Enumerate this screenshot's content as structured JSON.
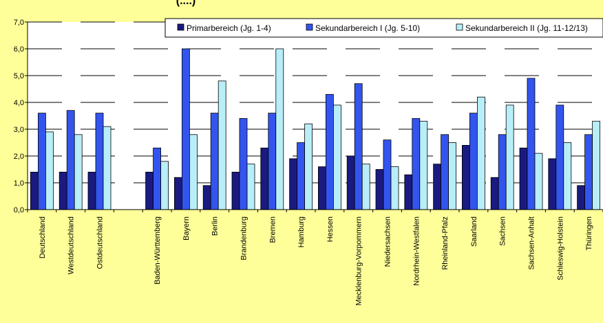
{
  "chart_data": {
    "type": "bar",
    "title_fragment": "(....)",
    "ylim": [
      0,
      7
    ],
    "yticks": [
      "0,0",
      "1,0",
      "2,0",
      "3,0",
      "4,0",
      "5,0",
      "6,0",
      "7,0"
    ],
    "grid": true,
    "legend_position": "top-right",
    "categories": [
      "Deutschland",
      "Westdeutschland",
      "Ostdeutschland",
      "",
      "Baden-Württemberg",
      "Bayern",
      "Berlin",
      "Brandenburg",
      "Bremen",
      "Hamburg",
      "Hessen",
      "Mecklenburg-Vorpommern",
      "Niedersachsen",
      "Nordrhein-Westfalen",
      "Rheinland-Pfalz",
      "Saarland",
      "Sachsen",
      "Sachsen-Anhalt",
      "Schleswig-Holstein",
      "Thüringen"
    ],
    "series": [
      {
        "name": "Primarbereich (Jg. 1-4)",
        "color": "#1a1a80",
        "values": [
          1.4,
          1.4,
          1.4,
          null,
          1.4,
          1.2,
          0.9,
          1.4,
          2.3,
          1.9,
          1.6,
          2.0,
          1.5,
          1.3,
          1.7,
          2.4,
          1.2,
          2.3,
          1.9,
          0.9
        ]
      },
      {
        "name": "Sekundarbereich I (Jg. 5-10)",
        "color": "#3355ee",
        "values": [
          3.6,
          3.7,
          3.6,
          null,
          2.3,
          6.0,
          3.6,
          3.4,
          3.6,
          2.5,
          4.3,
          4.7,
          2.6,
          3.4,
          2.8,
          3.6,
          2.8,
          4.9,
          3.9,
          2.8
        ]
      },
      {
        "name": "Sekundarbereich II (Jg. 11-12/13)",
        "color": "#b8eef8",
        "values": [
          2.9,
          2.8,
          3.1,
          null,
          1.8,
          2.8,
          4.8,
          1.7,
          6.0,
          3.2,
          3.9,
          1.7,
          1.6,
          3.3,
          2.5,
          4.2,
          3.9,
          2.1,
          2.5,
          3.3
        ]
      }
    ]
  }
}
